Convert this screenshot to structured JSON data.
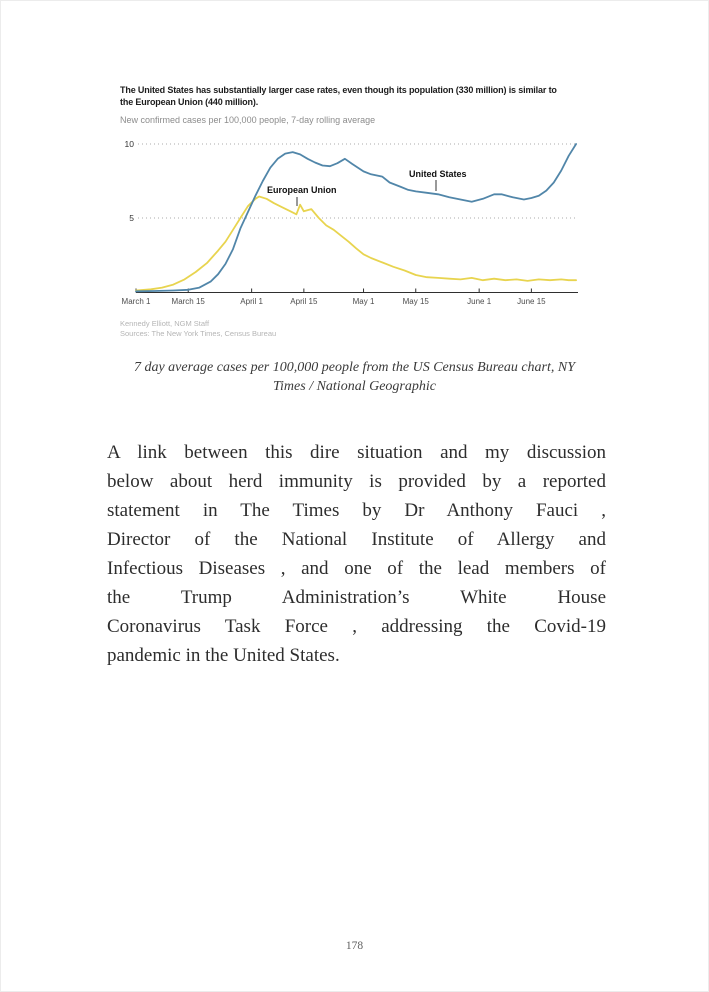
{
  "page": {
    "number": "178"
  },
  "figure": {
    "title_line1": "The United States has substantially larger case rates, even though its population (330 million) is similar to",
    "title_line2": "the European Union (440 million).",
    "subtitle": "New confirmed cases per 100,000 people, 7-day rolling average",
    "credit_line1": "Kennedy Elliott, NGM Staff",
    "credit_line2": "Sources: The New York Times, Census Bureau",
    "caption_line1": "7 day average cases per 100,000 people from the US Census Bureau chart, NY",
    "caption_line2": "Times / National Geographic"
  },
  "chart_data": {
    "type": "line",
    "title": "The United States has substantially larger case rates, even though its population (330 million) is similar to the European Union (440 million).",
    "subtitle": "New confirmed cases per 100,000 people, 7-day rolling average",
    "ylabel": "New confirmed cases per 100,000 people (7-day rolling average)",
    "ylim": [
      0,
      10
    ],
    "y_gridlines": [
      5,
      10
    ],
    "x_unit": "days since March 1",
    "xlim_days": [
      0,
      118
    ],
    "x_ticks": [
      [
        0,
        "March 1"
      ],
      [
        14,
        "March 15"
      ],
      [
        31,
        "April 1"
      ],
      [
        45,
        "April 15"
      ],
      [
        61,
        "May 1"
      ],
      [
        75,
        "May 15"
      ],
      [
        92,
        "June 1"
      ],
      [
        106,
        "June 15"
      ]
    ],
    "grid": "dotted horizontal",
    "legend_position": "inline labels with leader ticks",
    "series": [
      {
        "name": "United States",
        "color": "#5186a9",
        "points": [
          [
            0,
            0.05
          ],
          [
            5,
            0.07
          ],
          [
            10,
            0.1
          ],
          [
            14,
            0.15
          ],
          [
            17,
            0.3
          ],
          [
            20,
            0.7
          ],
          [
            22,
            1.2
          ],
          [
            24,
            1.9
          ],
          [
            26,
            2.9
          ],
          [
            28,
            4.3
          ],
          [
            30,
            5.4
          ],
          [
            32,
            6.5
          ],
          [
            34,
            7.5
          ],
          [
            36,
            8.4
          ],
          [
            38,
            9.0
          ],
          [
            40,
            9.35
          ],
          [
            42,
            9.45
          ],
          [
            44,
            9.3
          ],
          [
            46,
            9.0
          ],
          [
            48,
            8.75
          ],
          [
            50,
            8.55
          ],
          [
            52,
            8.5
          ],
          [
            54,
            8.7
          ],
          [
            56,
            9.0
          ],
          [
            58,
            8.65
          ],
          [
            61,
            8.15
          ],
          [
            63,
            7.95
          ],
          [
            66,
            7.8
          ],
          [
            68,
            7.4
          ],
          [
            71,
            7.1
          ],
          [
            73,
            6.9
          ],
          [
            75,
            6.8
          ],
          [
            78,
            6.7
          ],
          [
            81,
            6.6
          ],
          [
            84,
            6.4
          ],
          [
            87,
            6.25
          ],
          [
            90,
            6.1
          ],
          [
            93,
            6.3
          ],
          [
            96,
            6.6
          ],
          [
            98,
            6.6
          ],
          [
            101,
            6.4
          ],
          [
            104,
            6.25
          ],
          [
            106,
            6.35
          ],
          [
            108,
            6.5
          ],
          [
            110,
            6.85
          ],
          [
            112,
            7.4
          ],
          [
            114,
            8.2
          ],
          [
            116,
            9.2
          ],
          [
            118,
            10.0
          ]
        ]
      },
      {
        "name": "European Union",
        "color": "#e8d44f",
        "points": [
          [
            0,
            0.1
          ],
          [
            4,
            0.18
          ],
          [
            7,
            0.3
          ],
          [
            10,
            0.5
          ],
          [
            13,
            0.85
          ],
          [
            16,
            1.35
          ],
          [
            19,
            1.95
          ],
          [
            22,
            2.8
          ],
          [
            24,
            3.4
          ],
          [
            26,
            4.2
          ],
          [
            28,
            5.0
          ],
          [
            30,
            5.8
          ],
          [
            32,
            6.3
          ],
          [
            33,
            6.45
          ],
          [
            35,
            6.3
          ],
          [
            37,
            6.0
          ],
          [
            39,
            5.75
          ],
          [
            41,
            5.5
          ],
          [
            43,
            5.25
          ],
          [
            44,
            5.9
          ],
          [
            45,
            5.45
          ],
          [
            47,
            5.6
          ],
          [
            49,
            5.0
          ],
          [
            51,
            4.5
          ],
          [
            53,
            4.2
          ],
          [
            55,
            3.8
          ],
          [
            57,
            3.4
          ],
          [
            59,
            2.95
          ],
          [
            61,
            2.55
          ],
          [
            63,
            2.3
          ],
          [
            66,
            2.0
          ],
          [
            69,
            1.7
          ],
          [
            72,
            1.45
          ],
          [
            75,
            1.15
          ],
          [
            78,
            1.0
          ],
          [
            81,
            0.95
          ],
          [
            84,
            0.9
          ],
          [
            87,
            0.85
          ],
          [
            90,
            0.95
          ],
          [
            93,
            0.8
          ],
          [
            96,
            0.9
          ],
          [
            99,
            0.8
          ],
          [
            102,
            0.85
          ],
          [
            105,
            0.75
          ],
          [
            108,
            0.85
          ],
          [
            111,
            0.8
          ],
          [
            114,
            0.85
          ],
          [
            116,
            0.8
          ],
          [
            118,
            0.8
          ]
        ]
      }
    ],
    "credits": [
      "Kennedy Elliott, NGM Staff",
      "Sources: The New York Times, Census Bureau"
    ]
  },
  "paragraph": {
    "lines": [
      "A link between this dire situation and my discussion",
      "below about herd immunity is provided by a reported",
      "statement in The Times by Dr Anthony Fauci ,",
      "Director of the National Institute of Allergy and",
      "Infectious Diseases , and one of the lead members of",
      "the Trump Administration’s White House",
      "Coronavirus Task Force , addressing the Covid-19",
      "pandemic in the United States."
    ]
  }
}
